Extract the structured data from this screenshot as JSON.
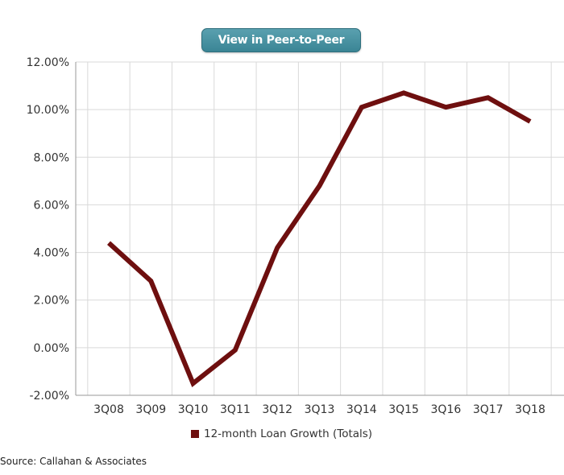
{
  "button": {
    "label": "View in Peer-to-Peer"
  },
  "source": "Source: Callahan & Associates",
  "colors": {
    "series": "#6e0f0f",
    "grid": "#d9d9d9",
    "axis": "#999999"
  },
  "chart_data": {
    "type": "line",
    "categories": [
      "3Q08",
      "3Q09",
      "3Q10",
      "3Q11",
      "3Q12",
      "3Q13",
      "3Q14",
      "3Q15",
      "3Q16",
      "3Q17",
      "3Q18"
    ],
    "series": [
      {
        "name": "12-month Loan Growth (Totals)",
        "values": [
          4.4,
          2.8,
          -1.5,
          -0.1,
          4.2,
          6.8,
          10.1,
          10.7,
          10.1,
          10.5,
          9.5
        ]
      }
    ],
    "ylim": [
      -2,
      12
    ],
    "yticks": [
      -2,
      0,
      2,
      4,
      6,
      8,
      10,
      12
    ],
    "ytick_labels": [
      "-2.00%",
      "0.00%",
      "2.00%",
      "4.00%",
      "6.00%",
      "8.00%",
      "10.00%",
      "12.00%"
    ],
    "grid": true,
    "legend_position": "bottom-center",
    "title": "",
    "xlabel": "",
    "ylabel": ""
  }
}
